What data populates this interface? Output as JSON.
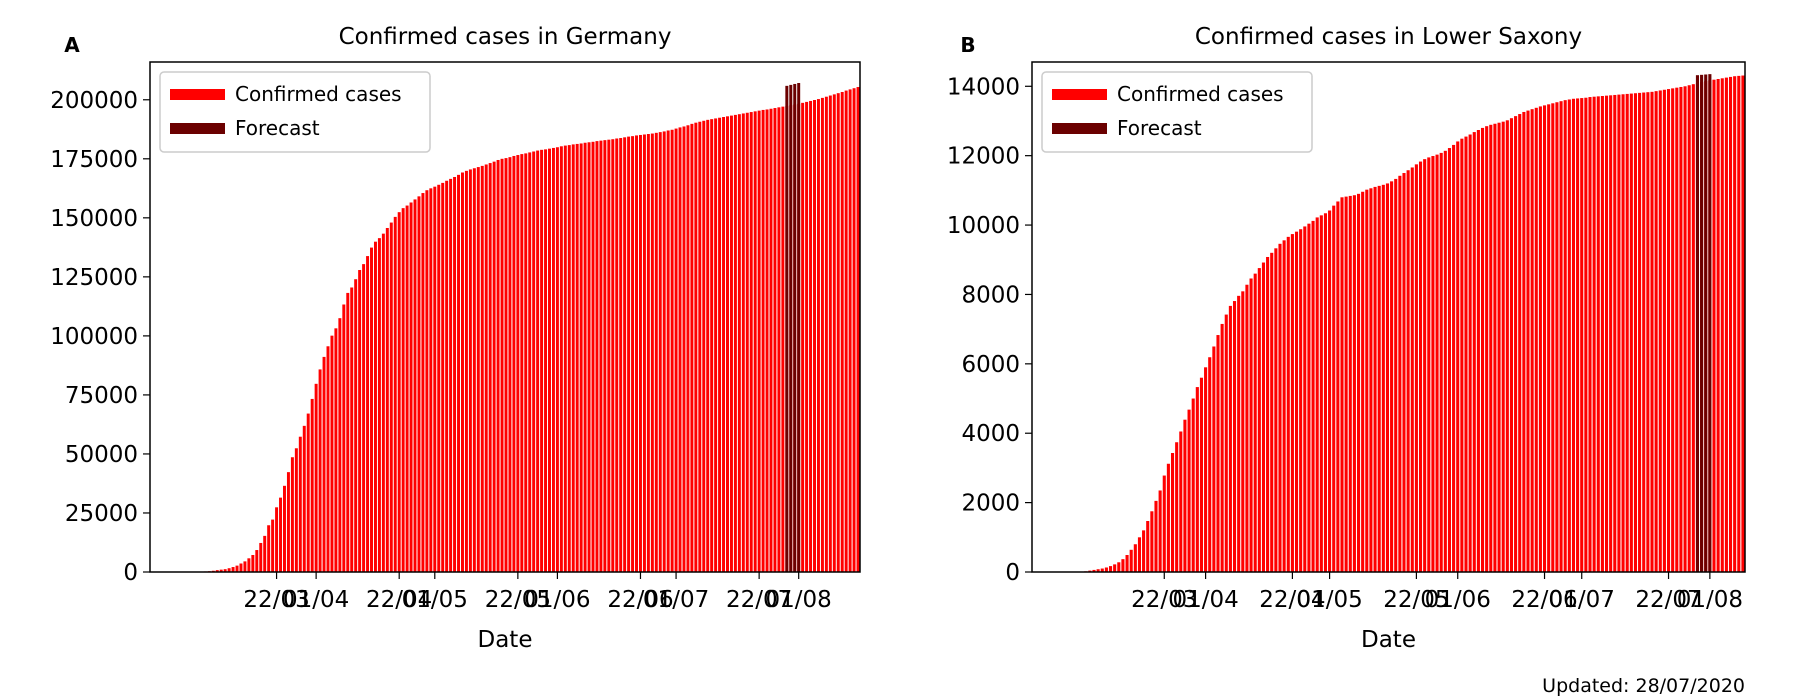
{
  "figure": {
    "footer": "Updated: 28/07/2020"
  },
  "colors": {
    "confirmed": "#ff0000",
    "forecast": "#6b0000"
  },
  "chart_data": [
    {
      "panel_label": "A",
      "type": "bar",
      "title": "Confirmed cases in Germany",
      "xlabel": "Date",
      "ylabel": "",
      "ylim": [
        0,
        216000
      ],
      "yticks": [
        0,
        25000,
        50000,
        75000,
        100000,
        125000,
        150000,
        175000,
        200000
      ],
      "xticks": [
        "22/03",
        "01/04",
        "22/04",
        "01/05",
        "22/05",
        "01/06",
        "22/06",
        "01/07",
        "22/07",
        "01/08"
      ],
      "legend": {
        "position": "top-left",
        "entries": [
          "Confirmed cases",
          "Forecast"
        ]
      },
      "series": [
        {
          "name": "Confirmed cases",
          "start_date": "2020-03-01",
          "values": [
            100,
            130,
            170,
            240,
            350,
            530,
            800,
            1000,
            1200,
            1600,
            2100,
            2700,
            3600,
            4500,
            5800,
            7200,
            9300,
            12300,
            15300,
            19800,
            22200,
            27400,
            31500,
            36500,
            42300,
            48600,
            52400,
            57300,
            61900,
            67100,
            73300,
            79700,
            85800,
            91100,
            95600,
            100100,
            103200,
            107500,
            113300,
            118200,
            120500,
            124000,
            127900,
            130400,
            133800,
            137400,
            139900,
            141400,
            143300,
            145700,
            148000,
            150400,
            152400,
            154100,
            155200,
            156500,
            157800,
            159100,
            160500,
            161700,
            162500,
            163200,
            164000,
            164800,
            165700,
            166500,
            167300,
            168200,
            169200,
            169900,
            170500,
            171000,
            171500,
            172000,
            172600,
            173200,
            173800,
            174500,
            175000,
            175300,
            175700,
            176200,
            176600,
            177000,
            177300,
            177700,
            178100,
            178500,
            178800,
            179000,
            179300,
            179600,
            179900,
            180300,
            180600,
            180800,
            181100,
            181300,
            181500,
            181800,
            182000,
            182200,
            182500,
            182700,
            182900,
            183100,
            183300,
            183600,
            183800,
            184100,
            184400,
            184600,
            184900,
            185100,
            185300,
            185500,
            185700,
            186000,
            186300,
            186600,
            187000,
            187300,
            187800,
            188300,
            188700,
            189200,
            189800,
            190300,
            190700,
            191100,
            191500,
            191800,
            192100,
            192400,
            192700,
            193000,
            193300,
            193600,
            193900,
            194200,
            194500,
            194800,
            195100,
            195400,
            195700,
            195900,
            196200,
            196500,
            196800,
            197100,
            197400,
            197700,
            198000,
            198300,
            198700,
            199100,
            199500,
            199900,
            200300,
            200800,
            201300,
            201800,
            202300,
            202800,
            203300,
            203900,
            204400,
            204900,
            205400
          ]
        },
        {
          "name": "Forecast",
          "start_date": "2020-07-29",
          "values": [
            205900,
            206300,
            206700,
            207100
          ]
        }
      ]
    },
    {
      "panel_label": "B",
      "type": "bar",
      "title": "Confirmed cases in Lower Saxony",
      "xlabel": "Date",
      "ylabel": "",
      "ylim": [
        0,
        14700
      ],
      "yticks": [
        0,
        2000,
        4000,
        6000,
        8000,
        10000,
        12000,
        14000
      ],
      "xticks": [
        "22/03",
        "01/04",
        "22/04",
        "01/05",
        "22/05",
        "01/06",
        "22/06",
        "01/07",
        "22/07",
        "01/08"
      ],
      "legend": {
        "position": "top-left",
        "entries": [
          "Confirmed cases",
          "Forecast"
        ]
      },
      "series": [
        {
          "name": "Confirmed cases",
          "start_date": "2020-03-01",
          "values": [
            5,
            10,
            20,
            40,
            60,
            80,
            100,
            130,
            170,
            220,
            280,
            370,
            490,
            640,
            800,
            1000,
            1200,
            1470,
            1750,
            2050,
            2350,
            2780,
            3120,
            3430,
            3740,
            4050,
            4390,
            4680,
            5000,
            5330,
            5600,
            5900,
            6190,
            6500,
            6830,
            7150,
            7420,
            7670,
            7810,
            7960,
            8090,
            8280,
            8460,
            8600,
            8760,
            8920,
            9080,
            9200,
            9330,
            9460,
            9560,
            9660,
            9740,
            9810,
            9880,
            9960,
            10040,
            10120,
            10220,
            10280,
            10340,
            10420,
            10560,
            10680,
            10800,
            10820,
            10840,
            10860,
            10900,
            10960,
            11020,
            11060,
            11100,
            11130,
            11160,
            11200,
            11260,
            11330,
            11420,
            11500,
            11580,
            11660,
            11750,
            11830,
            11900,
            11950,
            11990,
            12030,
            12080,
            12140,
            12220,
            12310,
            12410,
            12490,
            12550,
            12610,
            12680,
            12740,
            12800,
            12850,
            12890,
            12920,
            12950,
            12980,
            13020,
            13080,
            13140,
            13200,
            13260,
            13300,
            13340,
            13380,
            13420,
            13450,
            13480,
            13510,
            13540,
            13570,
            13600,
            13620,
            13640,
            13650,
            13660,
            13670,
            13690,
            13700,
            13710,
            13720,
            13730,
            13740,
            13750,
            13760,
            13770,
            13780,
            13790,
            13800,
            13810,
            13820,
            13830,
            13840,
            13860,
            13880,
            13900,
            13920,
            13940,
            13960,
            13980,
            14000,
            14030,
            14060,
            14090,
            14120,
            14150,
            14170,
            14190,
            14210,
            14230,
            14250,
            14270,
            14290,
            14300,
            14310
          ]
        },
        {
          "name": "Forecast",
          "start_date": "2020-07-29",
          "values": [
            14320,
            14330,
            14340,
            14350
          ]
        }
      ]
    }
  ]
}
